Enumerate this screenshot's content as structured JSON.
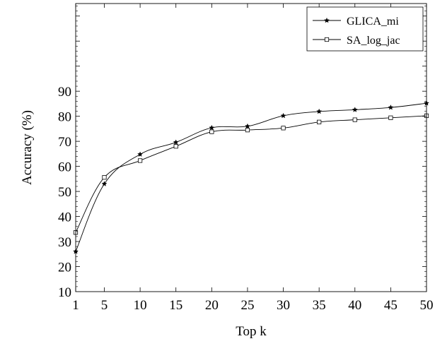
{
  "chart_data": {
    "type": "line",
    "title": "",
    "xlabel": "Top k",
    "ylabel": "Accuracy (%)",
    "x": [
      1,
      5,
      10,
      15,
      20,
      25,
      30,
      35,
      40,
      45,
      50
    ],
    "xticks": [
      1,
      5,
      10,
      15,
      20,
      25,
      30,
      35,
      40,
      45,
      50
    ],
    "yticks": [
      10,
      20,
      30,
      40,
      50,
      60,
      70,
      80,
      90
    ],
    "xlim": [
      1,
      50
    ],
    "ylim": [
      10,
      125
    ],
    "grid": false,
    "legend_position": "top-right",
    "series": [
      {
        "name": "GLICA_mi",
        "marker": "star",
        "color": "#000000",
        "values": [
          26,
          53,
          64.8,
          69.6,
          75.4,
          76,
          80.2,
          81.9,
          82.6,
          83.5,
          85.2
        ]
      },
      {
        "name": "SA_log_jac",
        "marker": "square",
        "color": "#000000",
        "values": [
          33.6,
          55.6,
          62.3,
          68,
          73.8,
          74.5,
          75.3,
          77.7,
          78.6,
          79.4,
          80.2
        ]
      }
    ]
  }
}
